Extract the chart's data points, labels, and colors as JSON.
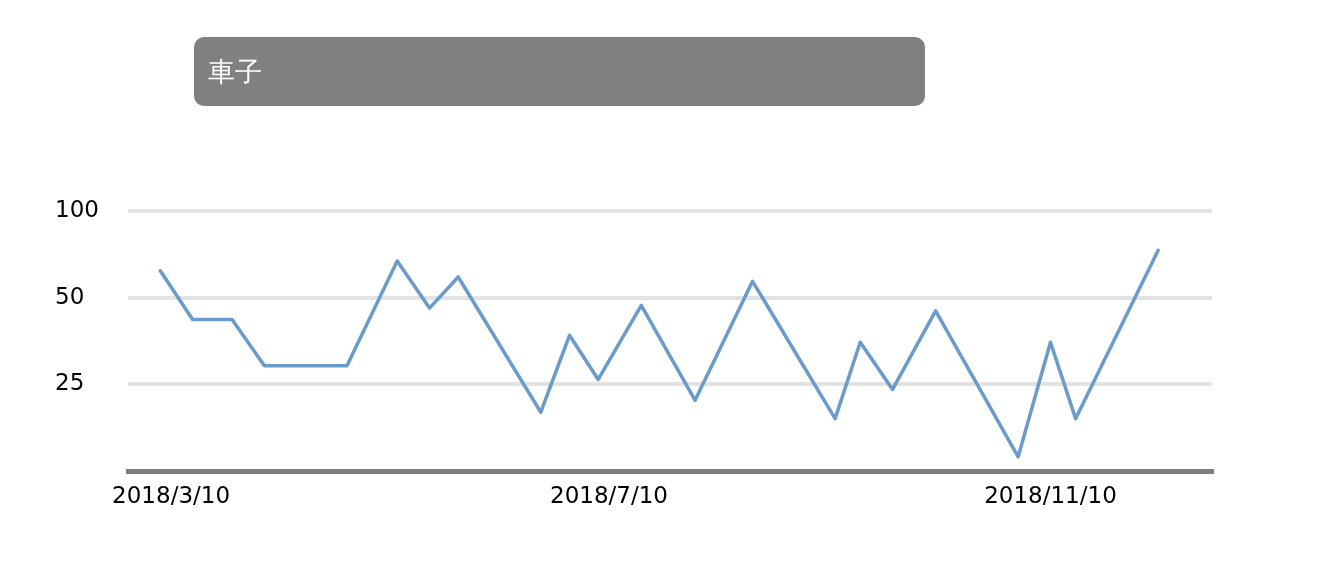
{
  "chart_data": {
    "type": "line",
    "title": "車子",
    "x": [
      "2018-03-07",
      "2018-03-16",
      "2018-03-27",
      "2018-04-05",
      "2018-04-28",
      "2018-05-12",
      "2018-05-21",
      "2018-05-29",
      "2018-06-21",
      "2018-06-29",
      "2018-07-07",
      "2018-07-19",
      "2018-08-03",
      "2018-08-19",
      "2018-09-11",
      "2018-09-18",
      "2018-09-27",
      "2018-10-09",
      "2018-11-01",
      "2018-11-10",
      "2018-11-17",
      "2018-12-10"
    ],
    "values": [
      62,
      42,
      42,
      29,
      29,
      67,
      46,
      59,
      20,
      37,
      26,
      47,
      22,
      57,
      19,
      35,
      24,
      45,
      14,
      35,
      19,
      73
    ],
    "color": "#6a9bcb",
    "xlim": [
      "2018-02-26",
      "2018-12-25"
    ],
    "xticks": [
      {
        "value": "2018-03-10",
        "label": "2018/3/10"
      },
      {
        "value": "2018-07-10",
        "label": "2018/7/10"
      },
      {
        "value": "2018-11-10",
        "label": "2018/11/10"
      }
    ],
    "ylim": [
      12.5,
      100
    ],
    "yticks": [
      25,
      50,
      100
    ],
    "log": "y",
    "grid": "y"
  }
}
